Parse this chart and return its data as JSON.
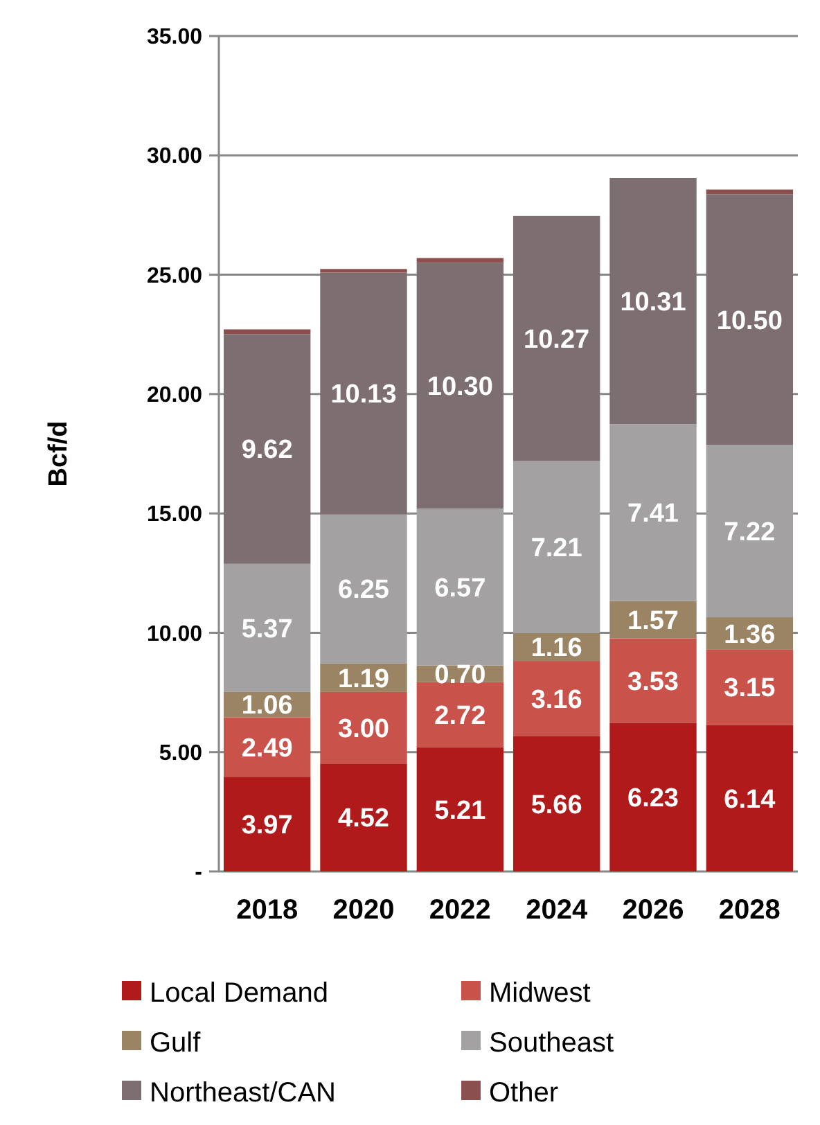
{
  "chart_data": {
    "type": "bar",
    "stacked": true,
    "ylabel": "Bcf/d",
    "categories": [
      "2018",
      "2020",
      "2022",
      "2024",
      "2026",
      "2028"
    ],
    "series": [
      {
        "name": "Local Demand",
        "color": "#b01a1a",
        "values": [
          3.97,
          4.52,
          5.21,
          5.66,
          6.23,
          6.14
        ],
        "value_labels": [
          "3.97",
          "4.52",
          "5.21",
          "5.66",
          "6.23",
          "6.14"
        ]
      },
      {
        "name": "Midwest",
        "color": "#c9524b",
        "values": [
          2.49,
          3.0,
          2.72,
          3.16,
          3.53,
          3.15
        ],
        "value_labels": [
          "2.49",
          "3.00",
          "2.72",
          "3.16",
          "3.53",
          "3.15"
        ]
      },
      {
        "name": "Gulf",
        "color": "#9b8464",
        "values": [
          1.06,
          1.19,
          0.7,
          1.16,
          1.57,
          1.36
        ],
        "value_labels": [
          "1.06",
          "1.19",
          "0.70",
          "1.16",
          "1.57",
          "1.36"
        ]
      },
      {
        "name": "Southeast",
        "color": "#a3a1a1",
        "values": [
          5.37,
          6.25,
          6.57,
          7.21,
          7.41,
          7.22
        ],
        "value_labels": [
          "5.37",
          "6.25",
          "6.57",
          "7.21",
          "7.41",
          "7.22"
        ]
      },
      {
        "name": "Northeast/CAN",
        "color": "#7d6f71",
        "values": [
          9.62,
          10.13,
          10.3,
          10.27,
          10.31,
          10.5
        ],
        "value_labels": [
          "9.62",
          "10.13",
          "10.30",
          "10.27",
          "10.31",
          "10.50"
        ]
      },
      {
        "name": "Other",
        "color": "#8c4f4f",
        "values": [
          0.2,
          0.15,
          0.2,
          null,
          null,
          0.2
        ]
      }
    ],
    "ylim": [
      0,
      35
    ],
    "yticks": [
      {
        "value": 0,
        "label": "-"
      },
      {
        "value": 5,
        "label": "5.00"
      },
      {
        "value": 10,
        "label": "10.00"
      },
      {
        "value": 15,
        "label": "15.00"
      },
      {
        "value": 20,
        "label": "20.00"
      },
      {
        "value": 25,
        "label": "25.00"
      },
      {
        "value": 30,
        "label": "30.00"
      },
      {
        "value": 35,
        "label": "35.00"
      }
    ],
    "grid": "y",
    "legend": "bottom"
  }
}
